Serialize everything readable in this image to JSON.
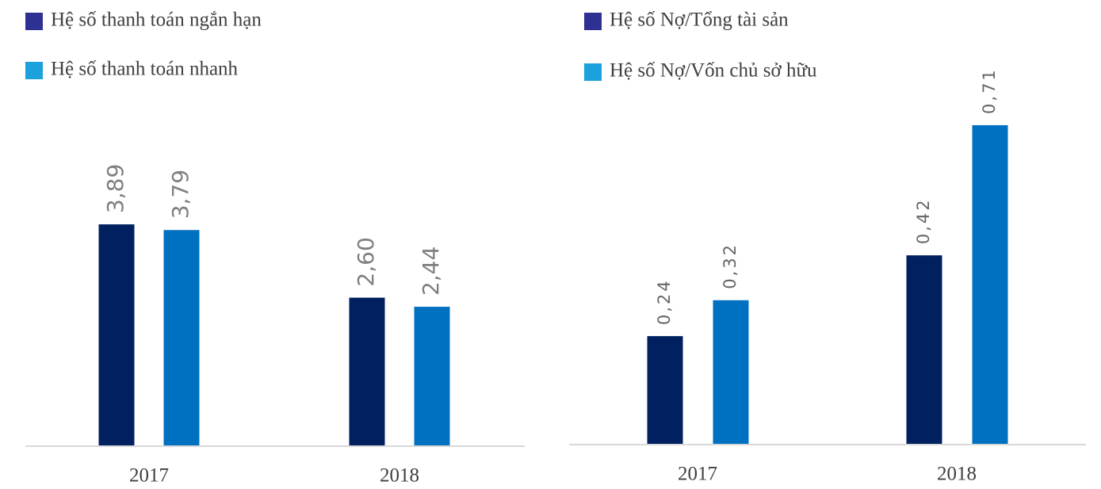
{
  "chart_data": [
    {
      "type": "bar",
      "categories": [
        "2017",
        "2018"
      ],
      "series": [
        {
          "name": "Hệ số thanh toán ngắn hạn",
          "color": "#002060",
          "legend_color": "#2e3192",
          "values": [
            3.89,
            2.6
          ],
          "value_labels": [
            "3,89",
            "2,60"
          ]
        },
        {
          "name": "Hệ số thanh toán nhanh",
          "color": "#0070c0",
          "legend_color": "#1ba1dc",
          "values": [
            3.79,
            2.44
          ],
          "value_labels": [
            "3,79",
            "2,44"
          ]
        }
      ],
      "ylim": [
        0,
        5
      ]
    },
    {
      "type": "bar",
      "categories": [
        "2017",
        "2018"
      ],
      "series": [
        {
          "name": "Hệ số Nợ/Tổng tài sản",
          "color": "#002060",
          "legend_color": "#2e3192",
          "values": [
            0.24,
            0.42
          ],
          "value_labels": [
            "0,24",
            "0,42"
          ]
        },
        {
          "name": "Hệ số Nợ/Vốn chủ sở hữu",
          "color": "#0070c0",
          "legend_color": "#1ba1dc",
          "values": [
            0.32,
            0.71
          ],
          "value_labels": [
            "0,32",
            "0,71"
          ]
        }
      ],
      "ylim": [
        0,
        0.8
      ]
    }
  ]
}
